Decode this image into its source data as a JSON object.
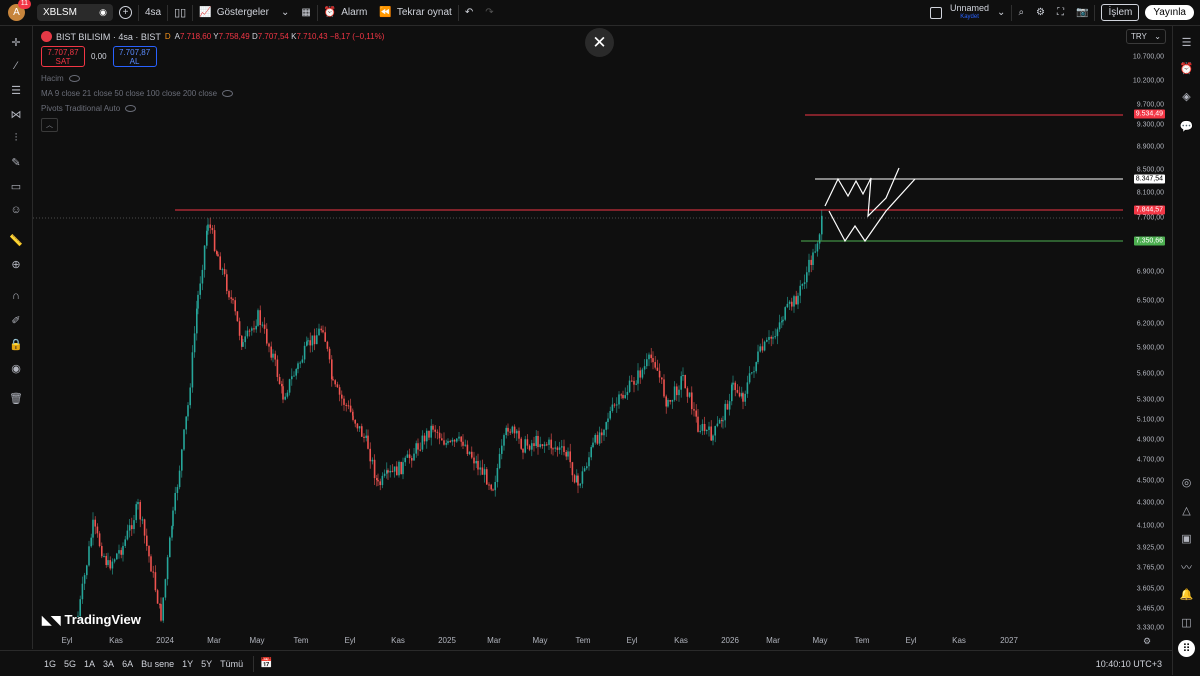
{
  "topbar": {
    "avatar_letter": "A",
    "notification_count": "11",
    "symbol": "XBLSM",
    "interval": "4sa",
    "indicators_label": "Göstergeler",
    "alert_label": "Alarm",
    "replay_label": "Tekrar oynat",
    "layout_name": "Unnamed",
    "layout_status": "Kaydet",
    "trade_label": "İşlem",
    "publish_label": "Yayınla"
  },
  "legend": {
    "title": "BIST BILISIM · 4sa · BIST",
    "flag": "D",
    "ohlc": {
      "open_label": "A",
      "open": "7.718,60",
      "high_label": "Y",
      "high": "7.758,49",
      "low_label": "D",
      "low": "7.707,54",
      "close_label": "K",
      "close": "7.710,43",
      "change": "−8,17 (−0,11%)"
    },
    "sell_price": "7.707,87",
    "sell_label": "SAT",
    "spread": "0,00",
    "buy_price": "7.707,87",
    "buy_label": "AL",
    "indicators": [
      "Hacim",
      "MA 9 close 21 close 50 close 100 close 200 close",
      "Pivots Traditional Auto"
    ]
  },
  "currency": "TRY",
  "price_axis": {
    "labels": [
      "10.700,00",
      "10.200,00",
      "9.700,00",
      "9.300,00",
      "8.900,00",
      "8.500,00",
      "8.100,00",
      "7.700,00",
      "6.900,00",
      "6.500,00",
      "6.200,00",
      "5.900,00",
      "5.600,00",
      "5.300,00",
      "5.100,00",
      "4.900,00",
      "4.700,00",
      "4.500,00",
      "4.300,00",
      "4.100,00",
      "3.925,00",
      "3.765,00",
      "3.605,00",
      "3.465,00",
      "3.330,00"
    ],
    "badges": [
      {
        "value": "9.534,49",
        "color": "#f23645"
      },
      {
        "value": "8.347,54",
        "color": "#ffffff"
      },
      {
        "value": "7.844,57",
        "color": "#f23645"
      },
      {
        "value": "7.350,66",
        "color": "#4caf50"
      }
    ]
  },
  "time_axis": [
    "Eyl",
    "Kas",
    "2024",
    "Mar",
    "May",
    "Tem",
    "Eyl",
    "Kas",
    "2025",
    "Mar",
    "May",
    "Tem",
    "Eyl",
    "Kas",
    "2026",
    "Mar",
    "May",
    "Tem",
    "Eyl",
    "Kas",
    "2027"
  ],
  "ranges": [
    "1G",
    "5G",
    "1A",
    "3A",
    "6A",
    "Bu sene",
    "1Y",
    "5Y",
    "Tümü"
  ],
  "clock": "10:40:10 UTC+3",
  "branding": "TradingView",
  "colors": {
    "up": "#26a69a",
    "down": "#ef5350",
    "resistance": "#f23645",
    "support": "#4caf50"
  }
}
